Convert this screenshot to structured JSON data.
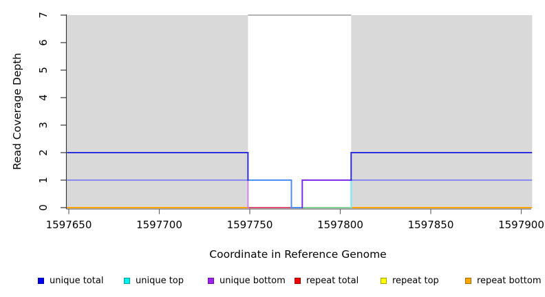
{
  "figure": {
    "background": "#ffffff",
    "shade_color": "#d9d9d9",
    "axis_color": "#333333",
    "x_axis_color": "#666666"
  },
  "chart_data": {
    "type": "line",
    "title": "",
    "xlabel": "Coordinate in Reference Genome",
    "ylabel": "Read Coverage Depth",
    "xlim": [
      1597649,
      1597906
    ],
    "ylim": [
      0,
      7
    ],
    "x_ticks": [
      1597650,
      1597700,
      1597750,
      1597800,
      1597850,
      1597900
    ],
    "y_ticks": [
      0,
      1,
      2,
      3,
      4,
      5,
      6,
      7
    ],
    "grid": false,
    "legend_position": "bottom",
    "shaded_regions": [
      {
        "x1": 1597649,
        "x2": 1597749
      },
      {
        "x1": 1597806,
        "x2": 1597906
      }
    ],
    "legend": [
      {
        "label": "unique total",
        "color": "#0000ee",
        "border": "#0000a0"
      },
      {
        "label": "unique top",
        "color": "#00eeee",
        "border": "#00a0a0"
      },
      {
        "label": "unique bottom",
        "color": "#a020f0",
        "border": "#6a14a0"
      },
      {
        "label": "repeat total",
        "color": "#ee0000",
        "border": "#a00000"
      },
      {
        "label": "repeat top",
        "color": "#ffff00",
        "border": "#a0a000"
      },
      {
        "label": "repeat bottom",
        "color": "#ffa500",
        "border": "#a06a00"
      }
    ],
    "segments": [
      {
        "series": "gap-top-boundary",
        "color": "#9a9a9a",
        "w": 1.6,
        "y": 7,
        "x1": 1597749,
        "x2": 1597806
      },
      {
        "series": "repeat-bottom",
        "color": "#ffa500",
        "w": 2,
        "y": 0,
        "x1": 1597649,
        "x2": 1597749
      },
      {
        "series": "repeat-bottom",
        "color": "#ffa500",
        "w": 2,
        "y": 0,
        "x1": 1597806,
        "x2": 1597906
      },
      {
        "series": "repeat-total",
        "color": "#de4e73",
        "w": 2,
        "y": 0,
        "x1": 1597749,
        "x2": 1597773
      },
      {
        "series": "unique-total",
        "color": "#4c8df8",
        "w": 2,
        "y": 0,
        "x1": 1597773,
        "x2": 1597779
      },
      {
        "series": "unique-top",
        "color": "#82d596",
        "w": 2,
        "y": 0,
        "x1": 1597779,
        "x2": 1597806
      },
      {
        "series": "unique-bottom",
        "color": "#cf82e8",
        "w": 2,
        "x": 1597749,
        "y1": 0,
        "y2": 1
      },
      {
        "series": "unique-top",
        "color": "#4c8df8",
        "w": 2,
        "x": 1597773,
        "y1": 0,
        "y2": 1
      },
      {
        "series": "unique-bottom",
        "color": "#7a2fe8",
        "w": 2,
        "x": 1597779,
        "y1": 0,
        "y2": 1
      },
      {
        "series": "unique-top",
        "color": "#70eeee",
        "w": 2,
        "x": 1597806,
        "y1": 0,
        "y2": 1
      },
      {
        "series": "unique-top-bottom-overlap",
        "color": "#8a8aee",
        "w": 2,
        "y": 1,
        "x1": 1597649,
        "x2": 1597749
      },
      {
        "series": "unique-top-bottom-overlap",
        "color": "#8a8aee",
        "w": 2,
        "y": 1,
        "x1": 1597806,
        "x2": 1597906
      },
      {
        "series": "unique-top",
        "color": "#4c8df8",
        "w": 2,
        "y": 1,
        "x1": 1597749,
        "x2": 1597773
      },
      {
        "series": "unique-bottom",
        "color": "#7a2fe8",
        "w": 2,
        "y": 1,
        "x1": 1597779,
        "x2": 1597806
      },
      {
        "series": "unique-total",
        "color": "#2e2edc",
        "w": 2,
        "y": 2,
        "x1": 1597649,
        "x2": 1597749
      },
      {
        "series": "unique-total",
        "color": "#2e2edc",
        "w": 2,
        "y": 2,
        "x1": 1597806,
        "x2": 1597906
      },
      {
        "series": "unique-total",
        "color": "#2e2edc",
        "w": 2,
        "x": 1597749,
        "y1": 1,
        "y2": 2
      },
      {
        "series": "unique-total",
        "color": "#2e2edc",
        "w": 2,
        "x": 1597806,
        "y1": 1,
        "y2": 2
      }
    ]
  }
}
